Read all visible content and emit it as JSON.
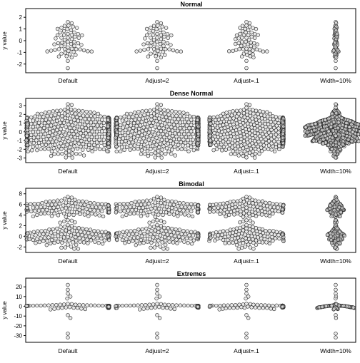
{
  "chart_data": [
    {
      "type": "scatter",
      "title": "Normal",
      "ylabel": "y value",
      "categories": [
        "Default",
        "Adjust=2",
        "Adjust=.1",
        "Width=10%"
      ],
      "ylim": [
        -2.5,
        2.5
      ],
      "yticks": [
        -2,
        -1,
        0,
        1,
        2
      ],
      "distribution": "normal",
      "n_points": 60,
      "seed": 11,
      "point_style": {
        "fill": "#d9d9d9",
        "stroke": "#2b2b2b"
      }
    },
    {
      "type": "scatter",
      "title": "Dense Normal",
      "ylabel": "y value",
      "categories": [
        "Default",
        "Adjust=2",
        "Adjust=.1",
        "Width=10%"
      ],
      "ylim": [
        -3.2,
        3.5
      ],
      "yticks": [
        -3,
        -2,
        -1,
        0,
        1,
        2,
        3
      ],
      "distribution": "normal",
      "n_points": 1000,
      "seed": 23,
      "point_style": {
        "fill": "#d9d9d9",
        "stroke": "#2b2b2b"
      }
    },
    {
      "type": "scatter",
      "title": "Bimodal",
      "ylabel": "y value",
      "categories": [
        "Default",
        "Adjust=2",
        "Adjust=.1",
        "Width=10%"
      ],
      "ylim": [
        -2.5,
        8.5
      ],
      "yticks": [
        -2,
        0,
        2,
        4,
        6,
        8
      ],
      "distribution": "bimodal",
      "modes": [
        0,
        5
      ],
      "n_points": 250,
      "seed": 37,
      "point_style": {
        "fill": "#d9d9d9",
        "stroke": "#2b2b2b"
      }
    },
    {
      "type": "scatter",
      "title": "Extremes",
      "ylabel": "y value",
      "categories": [
        "Default",
        "Adjust=2",
        "Adjust=.1",
        "Width=10%"
      ],
      "ylim": [
        -34,
        26
      ],
      "yticks": [
        -30,
        -20,
        -10,
        0,
        10,
        20
      ],
      "distribution": "extremes",
      "n_points": 100,
      "seed": 53,
      "extreme_values": [
        22,
        17,
        13,
        10,
        8,
        -9,
        -12,
        -28,
        -32
      ],
      "point_style": {
        "fill": "#d9d9d9",
        "stroke": "#2b2b2b"
      }
    }
  ]
}
